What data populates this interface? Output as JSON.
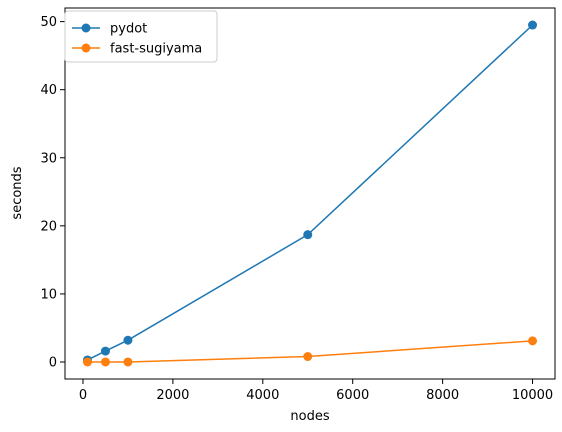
{
  "chart_data": {
    "type": "line",
    "title": "",
    "xlabel": "nodes",
    "ylabel": "seconds",
    "xlim": [
      -400,
      10500
    ],
    "ylim": [
      -2.5,
      52
    ],
    "xticks": [
      0,
      2000,
      4000,
      6000,
      8000,
      10000
    ],
    "yticks": [
      0,
      10,
      20,
      30,
      40,
      50
    ],
    "grid": false,
    "legend_position": "top-left",
    "x": [
      100,
      500,
      1000,
      5000,
      10000
    ],
    "series": [
      {
        "name": "pydot",
        "color": "#1f77b4",
        "values": [
          0.3,
          1.6,
          3.2,
          18.7,
          49.5
        ]
      },
      {
        "name": "fast-sugiyama",
        "color": "#ff7f0e",
        "values": [
          0.0,
          0.0,
          0.0,
          0.8,
          3.1
        ]
      }
    ]
  }
}
